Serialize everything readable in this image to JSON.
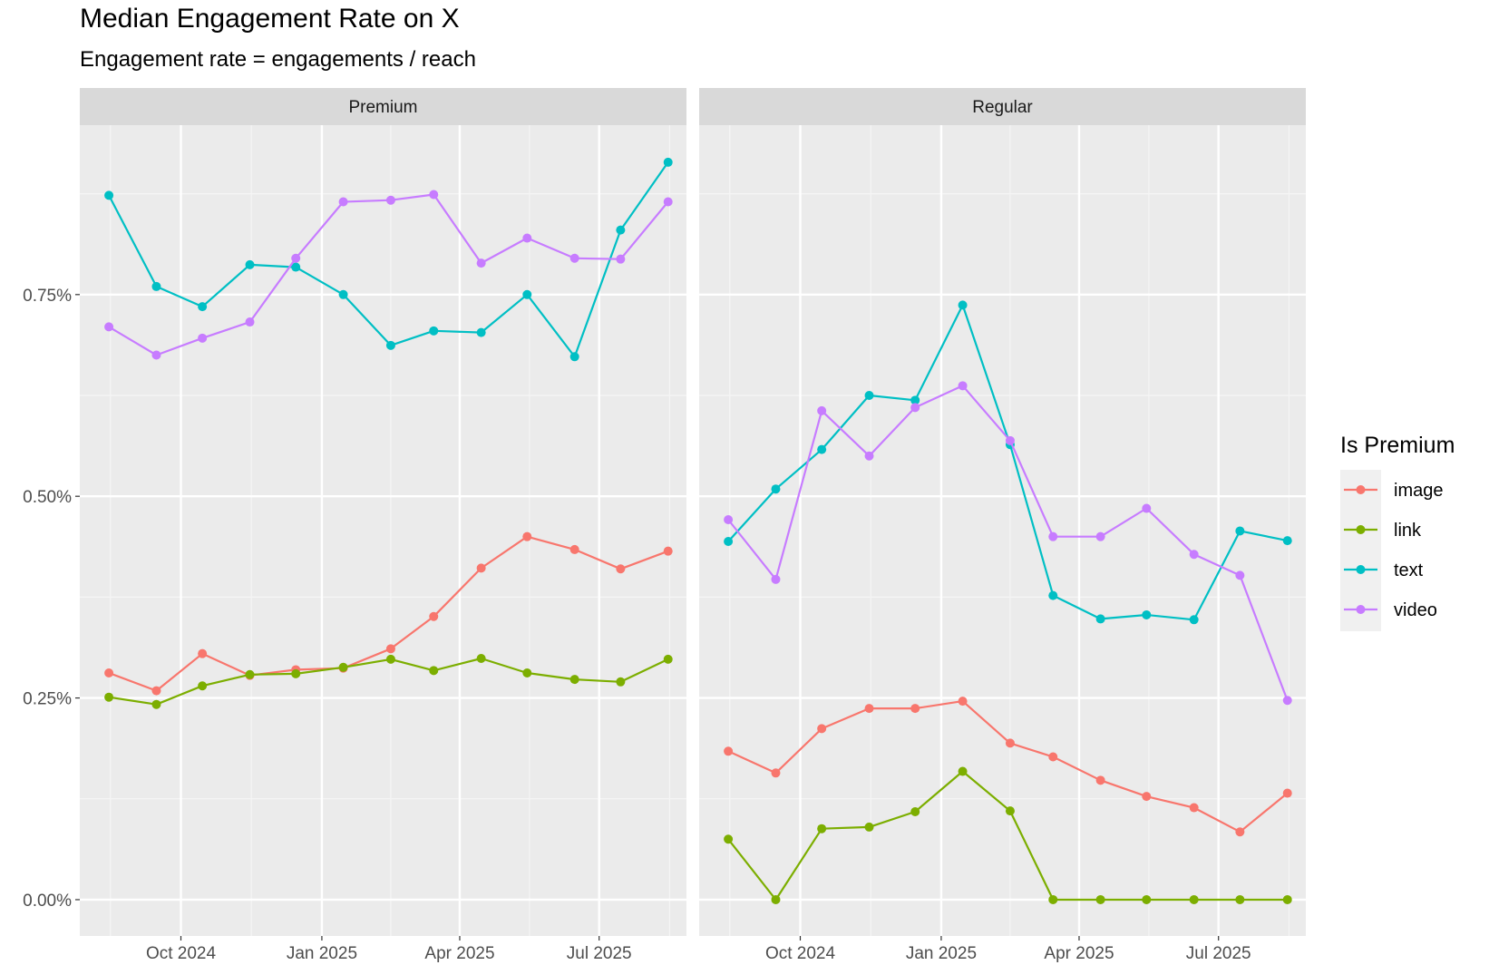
{
  "title": "Median Engagement Rate on X",
  "subtitle": "Engagement rate = engagements / reach",
  "chart_data": {
    "type": "line",
    "title": "Median Engagement Rate on X",
    "subtitle": "Engagement rate = engagements / reach",
    "xlabel": "",
    "ylabel": "",
    "facets": [
      "Premium",
      "Regular"
    ],
    "x": [
      "2024-08-15",
      "2024-09-15",
      "2024-10-15",
      "2024-11-15",
      "2024-12-15",
      "2025-01-15",
      "2025-02-15",
      "2025-03-15",
      "2025-04-15",
      "2025-05-15",
      "2025-06-15",
      "2025-07-15",
      "2025-08-15"
    ],
    "x_ticks": [
      {
        "date": "2024-10-01",
        "label": "Oct 2024"
      },
      {
        "date": "2025-01-01",
        "label": "Jan 2025"
      },
      {
        "date": "2025-04-01",
        "label": "Apr 2025"
      },
      {
        "date": "2025-07-01",
        "label": "Jul 2025"
      }
    ],
    "xlim": [
      "2024-07-27",
      "2025-08-27"
    ],
    "y_ticks": [
      {
        "value": 0.0,
        "label": "0.00%"
      },
      {
        "value": 0.25,
        "label": "0.25%"
      },
      {
        "value": 0.5,
        "label": "0.50%"
      },
      {
        "value": 0.75,
        "label": "0.75%"
      }
    ],
    "ylim": [
      -0.045,
      0.96
    ],
    "y_unit": "%",
    "grid": true,
    "legend": {
      "title": "Is Premium",
      "position": "right"
    },
    "colors": {
      "image": "#F8766D",
      "link": "#7CAE00",
      "text": "#00BFC4",
      "video": "#C77CFF"
    },
    "panels": [
      {
        "name": "Premium",
        "series": [
          {
            "name": "image",
            "values": [
              0.281,
              0.259,
              0.305,
              0.278,
              0.285,
              0.287,
              0.311,
              0.351,
              0.411,
              0.45,
              0.434,
              0.41,
              0.432
            ]
          },
          {
            "name": "link",
            "values": [
              0.251,
              0.242,
              0.265,
              0.279,
              0.28,
              0.288,
              0.298,
              0.284,
              0.299,
              0.281,
              0.273,
              0.27,
              0.298
            ]
          },
          {
            "name": "text",
            "values": [
              0.873,
              0.76,
              0.735,
              0.787,
              0.784,
              0.75,
              0.687,
              0.705,
              0.703,
              0.75,
              0.673,
              0.83,
              0.914
            ]
          },
          {
            "name": "video",
            "values": [
              0.71,
              0.675,
              0.696,
              0.716,
              0.795,
              0.865,
              0.867,
              0.874,
              0.789,
              0.82,
              0.795,
              0.794,
              0.865
            ]
          }
        ]
      },
      {
        "name": "Regular",
        "series": [
          {
            "name": "image",
            "values": [
              0.184,
              0.157,
              0.212,
              0.237,
              0.237,
              0.246,
              0.194,
              0.177,
              0.148,
              0.128,
              0.114,
              0.084,
              0.132
            ]
          },
          {
            "name": "link",
            "values": [
              0.075,
              0.0,
              0.088,
              0.09,
              0.109,
              0.159,
              0.11,
              0.0,
              0.0,
              0.0,
              0.0,
              0.0,
              0.0
            ]
          },
          {
            "name": "text",
            "values": [
              0.444,
              0.509,
              0.558,
              0.625,
              0.619,
              0.737,
              0.564,
              0.377,
              0.348,
              0.353,
              0.347,
              0.457,
              0.445
            ]
          },
          {
            "name": "video",
            "values": [
              0.471,
              0.397,
              0.606,
              0.55,
              0.61,
              0.637,
              0.569,
              0.45,
              0.45,
              0.485,
              0.428,
              0.402,
              0.247
            ]
          }
        ]
      }
    ]
  }
}
